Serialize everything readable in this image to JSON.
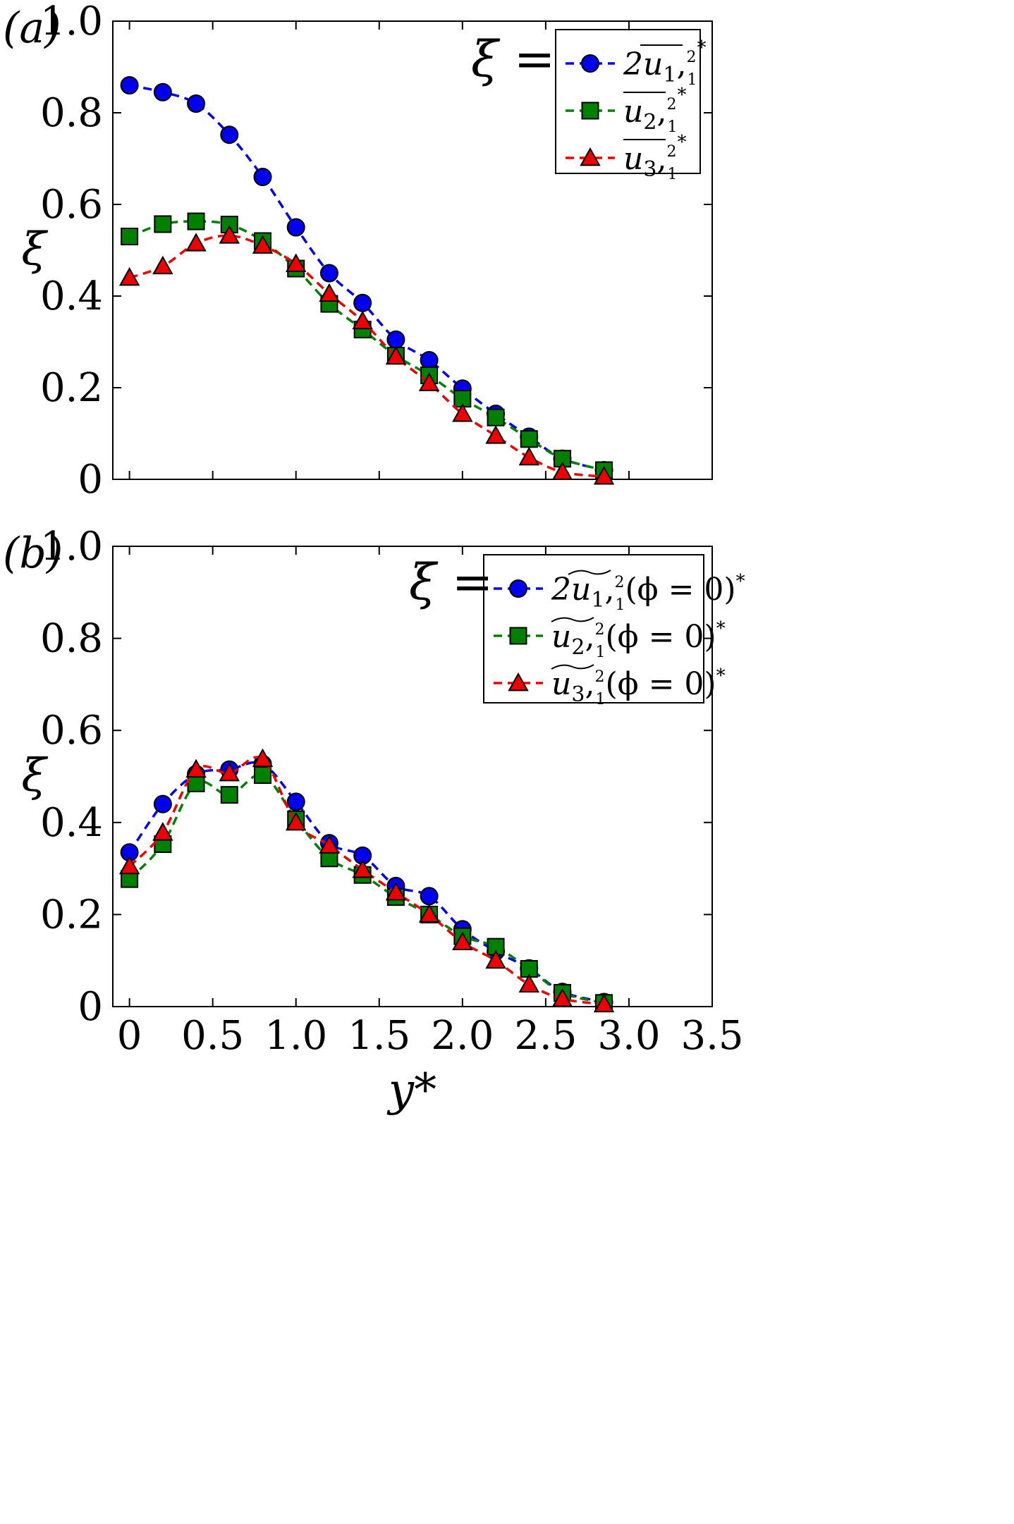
{
  "chart_data": [
    {
      "type": "line",
      "panel_label": "(a)",
      "ylabel": "ξ",
      "xlabel": "",
      "xlim": [
        -0.1,
        3.5
      ],
      "ylim": [
        0,
        1.0
      ],
      "yticks": [
        "0",
        "0.2",
        "0.4",
        "0.6",
        "0.8",
        "1.0"
      ],
      "xticks": [
        "0",
        "0.5",
        "1.0",
        "1.5",
        "2.0",
        "2.5",
        "3.0",
        "3.5"
      ],
      "show_xtick_labels": false,
      "legend": {
        "title": "ξ =",
        "placement": "top-right"
      },
      "x": [
        0,
        0.2,
        0.4,
        0.6,
        0.8,
        1.0,
        1.2,
        1.4,
        1.6,
        1.8,
        2.0,
        2.2,
        2.4,
        2.6,
        2.85
      ],
      "series": [
        {
          "name": "2u̅₁,₁²*",
          "marker": "circle",
          "color": "#0000ee",
          "values": [
            0.86,
            0.845,
            0.82,
            0.752,
            0.66,
            0.55,
            0.45,
            0.385,
            0.305,
            0.26,
            0.198,
            0.143,
            0.093,
            0.045,
            0.02
          ]
        },
        {
          "name": "u̅₂,₁²*",
          "marker": "square",
          "color": "#008000",
          "values": [
            0.53,
            0.557,
            0.563,
            0.556,
            0.52,
            0.46,
            0.383,
            0.327,
            0.27,
            0.227,
            0.176,
            0.135,
            0.088,
            0.045,
            0.02
          ]
        },
        {
          "name": "u̅₃,₁²*",
          "marker": "triangle",
          "color": "#ee0000",
          "values": [
            0.44,
            0.465,
            0.515,
            0.532,
            0.51,
            0.47,
            0.405,
            0.345,
            0.268,
            0.21,
            0.143,
            0.095,
            0.048,
            0.016,
            0.006
          ]
        }
      ]
    },
    {
      "type": "line",
      "panel_label": "(b)",
      "ylabel": "ξ",
      "xlabel": "y*",
      "xlim": [
        -0.1,
        3.5
      ],
      "ylim": [
        0,
        1.0
      ],
      "yticks": [
        "0",
        "0.2",
        "0.4",
        "0.6",
        "0.8",
        "1.0"
      ],
      "xticks": [
        "0",
        "0.5",
        "1.0",
        "1.5",
        "2.0",
        "2.5",
        "3.0",
        "3.5"
      ],
      "show_xtick_labels": true,
      "legend": {
        "title": "ξ =",
        "placement": "top-right"
      },
      "x": [
        0,
        0.2,
        0.4,
        0.6,
        0.8,
        1.0,
        1.2,
        1.4,
        1.6,
        1.8,
        2.0,
        2.2,
        2.4,
        2.6,
        2.85
      ],
      "series": [
        {
          "name": "2ũ₁,₁²(ϕ = 0)*",
          "marker": "circle",
          "color": "#0000ee",
          "values": [
            0.335,
            0.44,
            0.505,
            0.515,
            0.527,
            0.445,
            0.355,
            0.328,
            0.262,
            0.24,
            0.168,
            0.12,
            0.083,
            0.032,
            0.01
          ]
        },
        {
          "name": "ũ₂,₁²(ϕ = 0)*",
          "marker": "square",
          "color": "#008000",
          "values": [
            0.277,
            0.353,
            0.485,
            0.46,
            0.503,
            0.407,
            0.322,
            0.286,
            0.238,
            0.2,
            0.153,
            0.13,
            0.082,
            0.03,
            0.008
          ]
        },
        {
          "name": "ũ₃,₁²(ϕ = 0)*",
          "marker": "triangle",
          "color": "#ee0000",
          "values": [
            0.305,
            0.378,
            0.515,
            0.507,
            0.538,
            0.4,
            0.35,
            0.297,
            0.248,
            0.2,
            0.14,
            0.1,
            0.048,
            0.017,
            0.005
          ]
        }
      ]
    }
  ]
}
